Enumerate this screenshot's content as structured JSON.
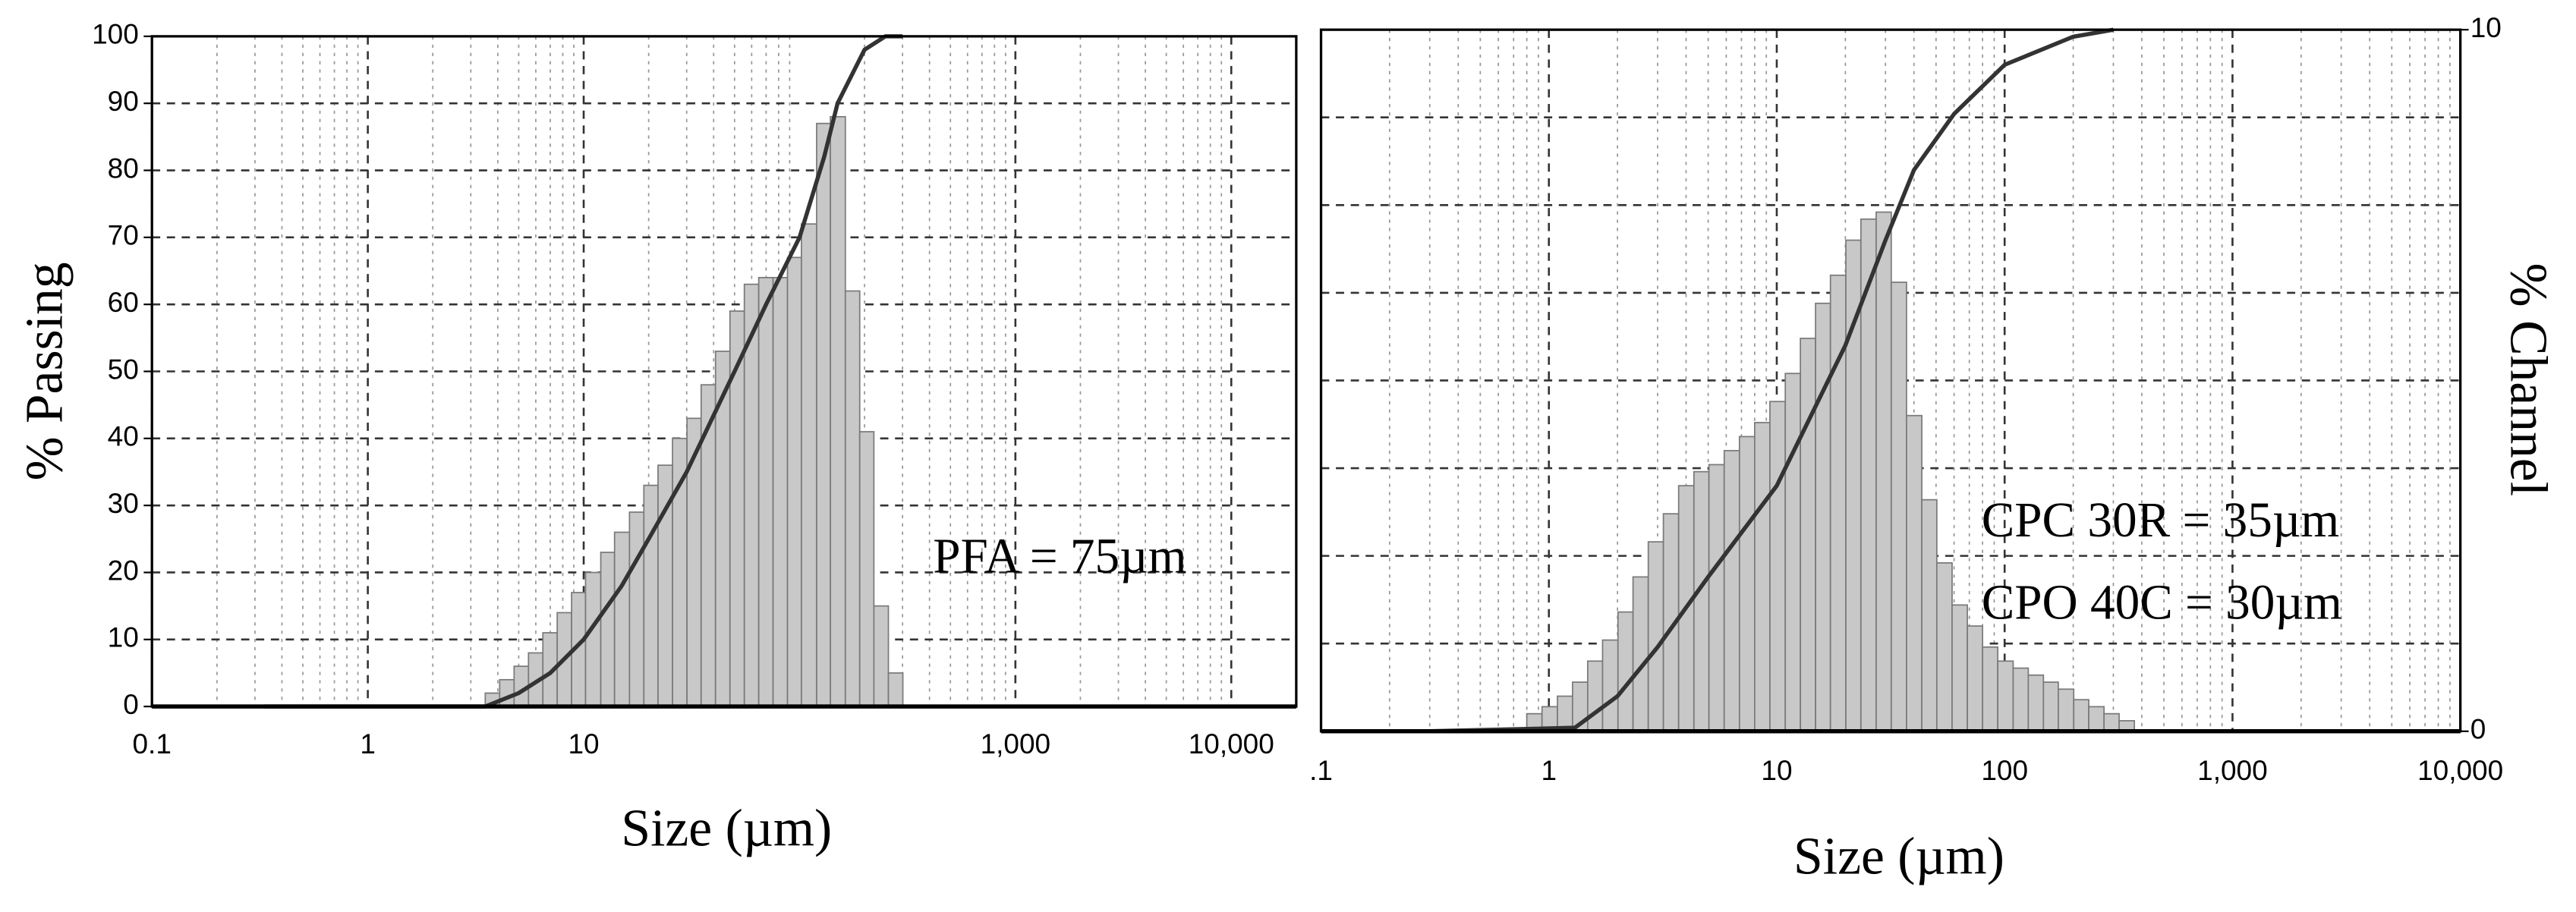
{
  "chart_data": [
    {
      "type": "histogram",
      "log_x": true,
      "grid": true,
      "minor_grid": true,
      "xlabel": "Size (µm)",
      "ylabel": "% Passing",
      "annotations": [
        "PFA = 75µm"
      ],
      "xlim": [
        0.1,
        20000
      ],
      "xticks": [
        0.1,
        1,
        10,
        {
          "value": 1000,
          "label": "1,000"
        },
        {
          "value": 10000,
          "label": "10,000"
        }
      ],
      "ylim": [
        0,
        100
      ],
      "yticks": [
        0,
        10,
        20,
        30,
        40,
        50,
        60,
        70,
        80,
        90,
        100
      ],
      "bar_color": "#c8c8c8",
      "line_color": "#333333",
      "bins": [
        3.5,
        4.08,
        4.76,
        5.55,
        6.47,
        7.54,
        8.79,
        10.2,
        12.0,
        13.9,
        16.3,
        19.0,
        22.1,
        25.8,
        30.1,
        35.0,
        40.8,
        47.6,
        55.5,
        64.7,
        75.4,
        87.9,
        102,
        120,
        139,
        163,
        190,
        221,
        258,
        301
      ],
      "counts": [
        2,
        4,
        6,
        8,
        11,
        14,
        17,
        20,
        23,
        26,
        29,
        33,
        36,
        40,
        43,
        48,
        53,
        59,
        63,
        64,
        64,
        67,
        72,
        87,
        88,
        62,
        41,
        15,
        5
      ],
      "cumulative": {
        "x": [
          0.33,
          3.5,
          5,
          7,
          10,
          15,
          20,
          30,
          50,
          70,
          100,
          130,
          150,
          200,
          250,
          300
        ],
        "values": [
          0,
          0,
          2,
          5,
          10,
          18,
          25,
          35,
          50,
          60,
          70,
          82,
          90,
          98,
          100,
          100
        ]
      }
    },
    {
      "type": "histogram",
      "log_x": true,
      "grid": true,
      "minor_grid": true,
      "xlabel": "Size (µm)",
      "y2label": "% Channel",
      "annotations": [
        "CPC 30R = 35µm",
        "CPO 40C = 30µm"
      ],
      "xlim": [
        0.1,
        10000
      ],
      "xticks": [
        {
          "value": 0.1,
          "label": ".1"
        },
        1,
        10,
        100,
        {
          "value": 1000,
          "label": "1,000"
        },
        {
          "value": 10000,
          "label": "10,000"
        }
      ],
      "ylim": [
        0,
        100
      ],
      "y2lim": [
        0,
        10
      ],
      "y2ticks": [
        0,
        10
      ],
      "ygrid": [
        1.25,
        2.5,
        3.75,
        5,
        6.25,
        7.5,
        8.75
      ],
      "counts_axis": "y2",
      "bar_color": "#c8c8c8",
      "line_color": "#333333",
      "bins": [
        0.8,
        0.933,
        1.09,
        1.27,
        1.48,
        1.72,
        2.01,
        2.34,
        2.73,
        3.18,
        3.71,
        4.33,
        5.04,
        5.88,
        6.86,
        8.0,
        9.33,
        10.9,
        12.7,
        14.8,
        17.2,
        20.1,
        23.4,
        27.3,
        31.8,
        37.1,
        43.3,
        50.4,
        58.8,
        68.6,
        80,
        93.3,
        109,
        127,
        148,
        172,
        201,
        234,
        273,
        318,
        371
      ],
      "counts": [
        0.25,
        0.35,
        0.5,
        0.7,
        1.0,
        1.3,
        1.7,
        2.2,
        2.7,
        3.1,
        3.5,
        3.7,
        3.8,
        4.0,
        4.2,
        4.4,
        4.7,
        5.1,
        5.6,
        6.1,
        6.5,
        7.0,
        7.3,
        7.4,
        6.4,
        4.5,
        3.3,
        2.4,
        1.8,
        1.5,
        1.2,
        1.0,
        0.9,
        0.8,
        0.7,
        0.6,
        0.45,
        0.35,
        0.25,
        0.15
      ],
      "cumulative": {
        "x": [
          0.3,
          1.3,
          2,
          3,
          5,
          10,
          20,
          30,
          40,
          60,
          100,
          200,
          300
        ],
        "values": [
          0,
          0.5,
          5,
          12,
          22,
          35,
          55,
          70,
          80,
          88,
          95,
          99,
          100
        ]
      }
    }
  ]
}
